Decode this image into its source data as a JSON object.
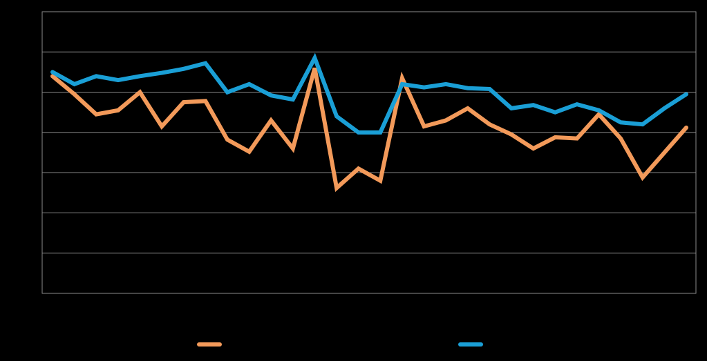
{
  "chart_data": {
    "type": "line",
    "title": "",
    "xlabel": "",
    "ylabel": "",
    "ylim": [
      0,
      7
    ],
    "grid": true,
    "legend_position": "bottom",
    "background_color": "#000000",
    "gridline_color": "#8c8c8c",
    "x": [
      1,
      2,
      3,
      4,
      5,
      6,
      7,
      8,
      9,
      10,
      11,
      12,
      13,
      14,
      15,
      16,
      17,
      18,
      19,
      20,
      21,
      22,
      23,
      24,
      25,
      26,
      27,
      28,
      29,
      30
    ],
    "series": [
      {
        "name": "",
        "color": "#f39a5a",
        "values": [
          5.4,
          4.95,
          4.45,
          4.55,
          5.0,
          4.15,
          4.75,
          4.78,
          3.82,
          3.52,
          4.3,
          3.6,
          5.6,
          2.62,
          3.1,
          2.8,
          5.35,
          4.15,
          4.3,
          4.6,
          4.2,
          3.95,
          3.6,
          3.88,
          3.85,
          4.45,
          3.85,
          2.88,
          3.5,
          4.12
        ]
      },
      {
        "name": "",
        "color": "#1a9fd6",
        "values": [
          5.5,
          5.2,
          5.4,
          5.3,
          5.4,
          5.48,
          5.58,
          5.72,
          5.0,
          5.2,
          4.92,
          4.82,
          5.85,
          4.4,
          4.0,
          4.0,
          5.2,
          5.12,
          5.2,
          5.1,
          5.08,
          4.6,
          4.68,
          4.5,
          4.7,
          4.55,
          4.25,
          4.2,
          4.6,
          4.95
        ]
      }
    ]
  }
}
